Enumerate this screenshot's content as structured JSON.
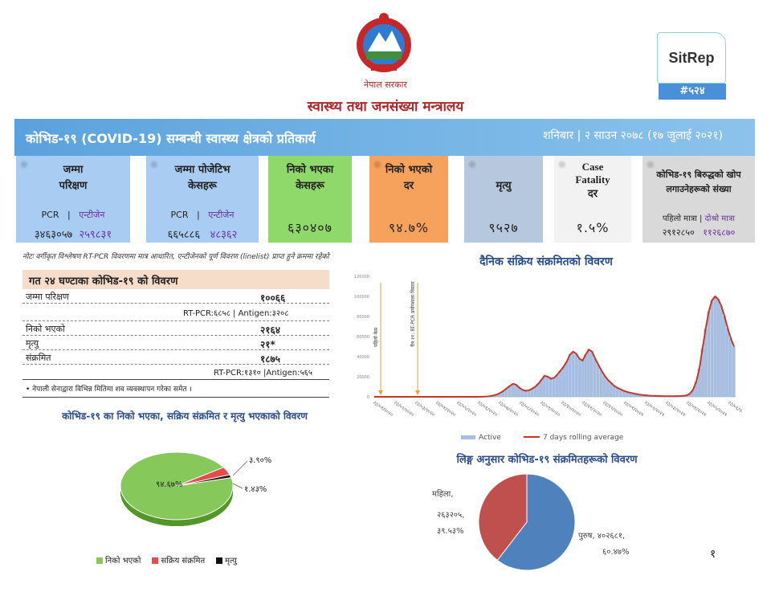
{
  "header": {
    "emblem_icon": "nepal-emblem-icon",
    "government": "नेपाल सरकार",
    "ministry": "स्वास्थ्य तथा जनसंख्या मन्त्रालय",
    "sitrep_label": "SitRep",
    "sitrep_number": "#५२४"
  },
  "banner": {
    "title": "कोभिड-१९ (COVID-19) सम्बन्धी स्वास्थ्य क्षेत्रको प्रतिकार्य",
    "date": "शनिबार | २ साउन २०७८ (१७ जुलाई २०२१)"
  },
  "cards": {
    "tests": {
      "title1": "जम्मा",
      "title2": "परिक्षण",
      "sub_a": "PCR",
      "sep": "|",
      "sub_b": "एन्टीजेन",
      "val_a": "३४६३०५७",
      "val_b": "२५९८३१",
      "color": "#a9cdf2"
    },
    "positive": {
      "title1": "जम्मा पोजेटिभ",
      "title2": "केसहरू",
      "sub_a": "PCR",
      "sep": "|",
      "sub_b": "एन्टीजेन",
      "val_a": "६६५८८६",
      "val_b": "४८३६२",
      "color": "#a9cdf2"
    },
    "recovered": {
      "title1": "निको भएका",
      "title2": "केसहरू",
      "val": "६३०४०७",
      "color": "#8fd86a"
    },
    "recovery_rate": {
      "title1": "निको भएको",
      "title2": "दर",
      "val": "९४.७%",
      "color": "#f6a25c"
    },
    "deaths": {
      "title": "मृत्यु",
      "val": "९५२७",
      "color": "#b5c8de"
    },
    "cfr": {
      "title1": "Case",
      "title2": "Fatality",
      "title3": "दर",
      "val": "१.५%",
      "color": "#f2f2f2"
    },
    "vaccine": {
      "title1": "कोभिड-१९ बिरुद्धको खोप",
      "title2": "लगाउनेहरूको संख्या",
      "sub_a": "पहिलो मात्रा",
      "sep": "|",
      "sub_b": "दोश्रो मात्रा",
      "val_a": "२९१२८५०",
      "val_b": "११२६८७०",
      "color": "#d9d9d9"
    }
  },
  "note": "नोटः वर्गीकृत विश्लेषण RT-PCR विवरणमा मात्र आधारित, एन्टीजेनको पूर्ण विवरण (linelist) प्राप्त हुने क्रममा रहेको",
  "last24": {
    "title": "गत २४ घण्टाका कोभिड-१९ को विवरण",
    "tests_label": "जम्मा परिक्षण",
    "tests_val": "१००६६",
    "tests_sub": "RT-PCR:६८५८ | Antigen:३२०८",
    "recovered_label": "निको भएको",
    "recovered_val": "२१६४",
    "deaths_label": "मृत्यु",
    "deaths_val": "२१*",
    "infected_label": "संक्रमित",
    "infected_val": "१८७५",
    "infected_sub": "RT-PCR:१३१० |Antigen:५६५",
    "footnote": "• नेपाली सेनाद्वारा विभिन्न मितिमा शव व्यवस्थापन गरेका समेत ।"
  },
  "chart_data": [
    {
      "type": "bar",
      "title": "दैनिक संक्रिय संक्रमितको विवरण",
      "xlabel": "",
      "ylabel": "",
      "ylim": [
        0,
        100000
      ],
      "yticks": [
        "0",
        "20000",
        "40000",
        "60000",
        "80000",
        "100000",
        "120000"
      ],
      "xticks": [
        "२३/०१/२०२०",
        "२३/०२/२०२०",
        "२३/०३/२०२०",
        "२३/०४/२०२०",
        "२३/०५/२०२०",
        "२३/०६/२०२०",
        "२३/०७/२०२०",
        "२३/०८/२०२०",
        "२३/०९/२०२०",
        "२३/१०/२०२०",
        "२३/११/२०२०",
        "२३/१२/२०२०",
        "२३/०१/२०२१",
        "२३/०२/२०२१",
        "२३/०३/२०२१",
        "२३/०४/२०२१",
        "२३/०५/२०२१",
        "२३/०६/२०२१"
      ],
      "series": [
        {
          "name": "Active",
          "color": "#a7bfe3",
          "values": [
            0,
            0,
            0,
            0,
            0,
            0,
            0,
            0,
            0,
            0,
            0,
            0,
            0,
            0,
            0,
            0,
            0,
            0,
            0,
            0,
            0,
            0,
            0,
            0,
            0,
            0,
            0,
            0,
            0,
            0,
            0,
            0,
            0,
            0,
            100,
            200,
            400,
            800,
            1500,
            2500,
            4000,
            6000,
            8500,
            11000,
            13000,
            12000,
            9000,
            7000,
            6000,
            6500,
            8000,
            10000,
            13000,
            17000,
            21000,
            20000,
            18000,
            19000,
            22000,
            26000,
            30000,
            35000,
            42000,
            45000,
            43000,
            38000,
            36000,
            42000,
            47000,
            45000,
            38000,
            32000,
            26000,
            21000,
            17000,
            14000,
            11000,
            9000,
            7500,
            6000,
            5000,
            4200,
            3500,
            2800,
            2200,
            1800,
            1500,
            1200,
            1000,
            900,
            800,
            700,
            650,
            600,
            600,
            650,
            700,
            800,
            1000,
            1500,
            3000,
            7000,
            15000,
            28000,
            48000,
            68000,
            85000,
            96000,
            100000,
            97000,
            90000,
            80000,
            68000,
            58000,
            50000
          ]
        },
        {
          "name": "7 days rolling average",
          "color": "#c0392b"
        }
      ],
      "annotations": [
        "पहिलो केस",
        "चैत्र ११: RT-PCR प्रयोगशाला विस्तार"
      ],
      "legend": "bottom"
    },
    {
      "type": "pie",
      "title": "कोभिड-१९ का निको भएका, सक्रिय संक्रमित र मृत्यु भएकाको विवरण",
      "slices": [
        {
          "name": "निको भएको",
          "value": 94.67,
          "label": "९४.६७%",
          "color": "#86c95a"
        },
        {
          "name": "सक्रिय संक्रमित",
          "value": 3.9,
          "label": "३.९०%",
          "color": "#e64a4a"
        },
        {
          "name": "मृत्यु",
          "value": 1.43,
          "label": "१.४३%",
          "color": "#111111"
        }
      ]
    },
    {
      "type": "pie",
      "title": "लिङ्ग अनुसार कोभिड-१९ संक्रमितहरूको विवरण",
      "slices": [
        {
          "name": "पुरुष",
          "value": 60.47,
          "label": "पुरुष, ४०२६८१, ६०.४७%",
          "color": "#4f81bd"
        },
        {
          "name": "महिला",
          "value": 39.53,
          "label": "महिला, २६३२०५, ३९.५३%",
          "color": "#c0504d"
        }
      ]
    }
  ],
  "page_number": "१"
}
